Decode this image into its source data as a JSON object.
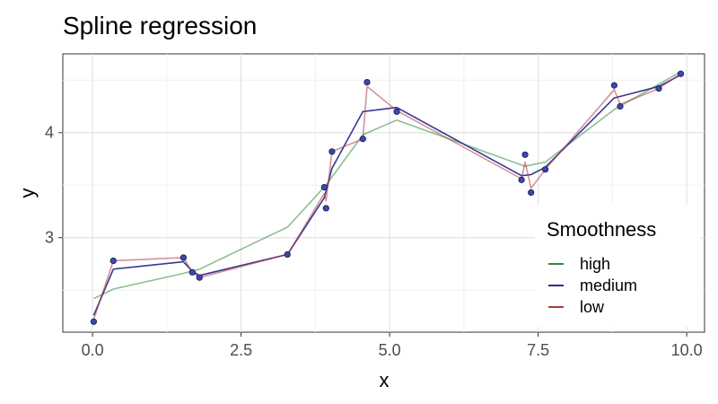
{
  "chart_data": {
    "type": "line",
    "title": "Spline regression",
    "xlabel": "x",
    "ylabel": "y",
    "xlim": [
      -0.5,
      10.3
    ],
    "ylim": [
      2.1,
      4.75
    ],
    "xticks": [
      0.0,
      2.5,
      5.0,
      7.5,
      10.0
    ],
    "xtick_labels": [
      "0.0",
      "2.5",
      "5.0",
      "7.5",
      "10.0"
    ],
    "yticks": [
      3,
      4
    ],
    "ytick_labels": [
      "3",
      "4"
    ],
    "grid": true,
    "points": {
      "x": [
        0.02,
        0.35,
        1.53,
        1.68,
        1.8,
        3.28,
        3.9,
        3.93,
        4.03,
        4.55,
        4.62,
        5.12,
        7.22,
        7.28,
        7.38,
        7.62,
        8.78,
        8.88,
        9.53,
        9.9
      ],
      "y": [
        2.2,
        2.78,
        2.81,
        2.67,
        2.62,
        2.84,
        3.48,
        3.28,
        3.82,
        3.94,
        4.48,
        4.2,
        3.55,
        3.79,
        3.43,
        3.65,
        4.45,
        4.25,
        4.42,
        4.56
      ],
      "color": "#3b47b8"
    },
    "series": [
      {
        "name": "high",
        "color": "#2e8b3a",
        "x": [
          0.02,
          0.35,
          1.53,
          1.8,
          3.28,
          3.93,
          4.55,
          5.12,
          7.28,
          7.62,
          8.78,
          9.9
        ],
        "y": [
          2.42,
          2.51,
          2.66,
          2.7,
          3.1,
          3.5,
          3.98,
          4.12,
          3.68,
          3.72,
          4.22,
          4.58
        ]
      },
      {
        "name": "medium",
        "color": "#2d2d8c",
        "x": [
          0.02,
          0.35,
          1.53,
          1.68,
          1.8,
          3.28,
          3.9,
          4.03,
          4.55,
          5.12,
          7.22,
          7.38,
          7.62,
          8.78,
          9.53,
          9.9
        ],
        "y": [
          2.26,
          2.7,
          2.77,
          2.68,
          2.64,
          2.84,
          3.38,
          3.66,
          4.2,
          4.24,
          3.59,
          3.6,
          3.67,
          4.33,
          4.44,
          4.55
        ]
      },
      {
        "name": "low",
        "color": "#b03a48",
        "x": [
          0.02,
          0.35,
          1.53,
          1.68,
          1.8,
          3.28,
          3.9,
          3.93,
          4.03,
          4.55,
          4.62,
          5.12,
          7.22,
          7.28,
          7.38,
          7.62,
          8.78,
          8.88,
          9.53,
          9.9
        ],
        "y": [
          2.22,
          2.78,
          2.81,
          2.67,
          2.62,
          2.84,
          3.42,
          3.35,
          3.82,
          3.94,
          4.44,
          4.21,
          3.56,
          3.72,
          3.47,
          3.65,
          4.41,
          4.27,
          4.42,
          4.56
        ]
      }
    ],
    "legend": {
      "title": "Smoothness",
      "position": "bottom-right-inside",
      "entries": [
        "high",
        "medium",
        "low"
      ]
    }
  }
}
